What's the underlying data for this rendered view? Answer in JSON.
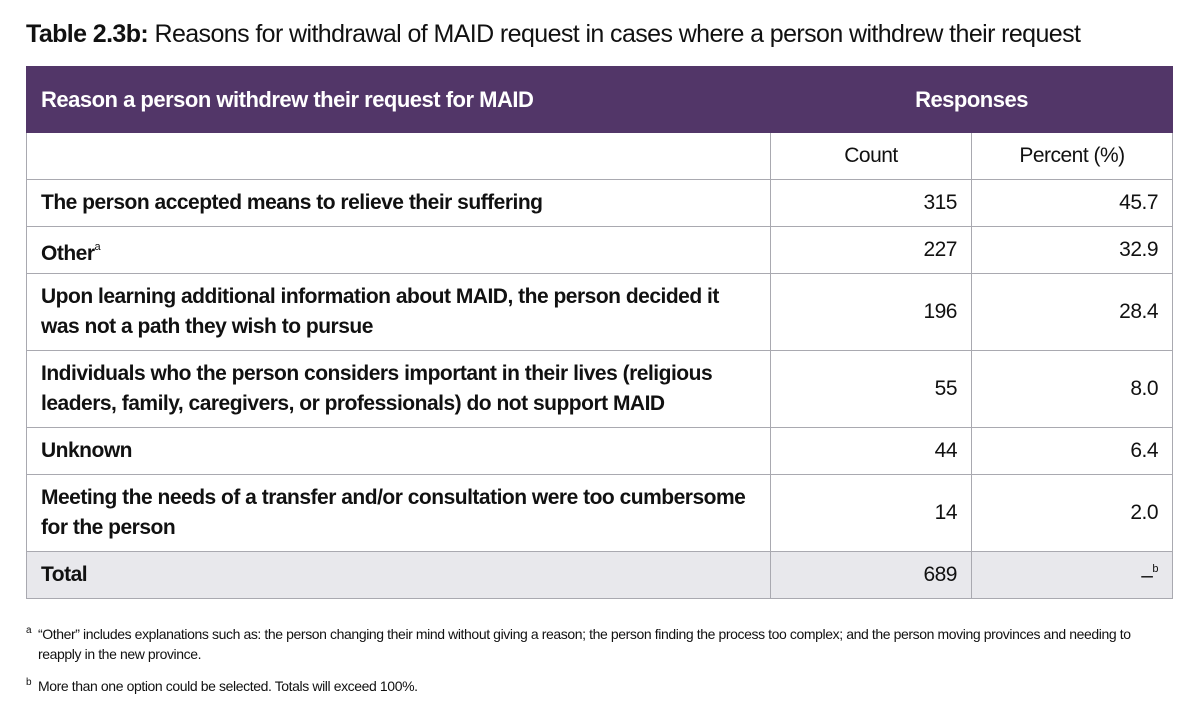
{
  "caption": {
    "label": "Table 2.3b:",
    "text": "Reasons for withdrawal of MAID request in cases where a person withdrew their request"
  },
  "table": {
    "header": {
      "reason": "Reason a person withdrew their request for MAID",
      "responses": "Responses",
      "count": "Count",
      "percent": "Percent (%)"
    },
    "rows": [
      {
        "reason": "The person accepted means to relieve their suffering",
        "count": "315",
        "percent": "45.7"
      },
      {
        "reason": "Other",
        "superscript": "a",
        "count": "227",
        "percent": "32.9"
      },
      {
        "reason": "Upon learning additional information about MAID, the person decided it was not a path they wish to pursue",
        "count": "196",
        "percent": "28.4"
      },
      {
        "reason": "Individuals who the person considers important in their lives (religious leaders, family, caregivers, or professionals) do not support MAID",
        "count": "55",
        "percent": "8.0"
      },
      {
        "reason": "Unknown",
        "count": "44",
        "percent": "6.4"
      },
      {
        "reason": "Meeting the needs of a transfer and/or consultation were too cumbersome for the person",
        "count": "14",
        "percent": "2.0"
      }
    ],
    "total": {
      "reason": "Total",
      "count": "689",
      "percent": "–",
      "superscript": "b"
    }
  },
  "footnotes": [
    {
      "mark": "a",
      "text": "“Other” includes explanations such as: the person changing their mind without giving a reason; the person finding the process too complex; and the person moving provinces and needing to reapply in the new province."
    },
    {
      "mark": "b",
      "text": "More than one option could be selected. Totals will exceed 100%."
    }
  ],
  "colors": {
    "header_bg": "#523668",
    "total_bg": "#e8e8ec",
    "border": "#a9a9b0"
  }
}
